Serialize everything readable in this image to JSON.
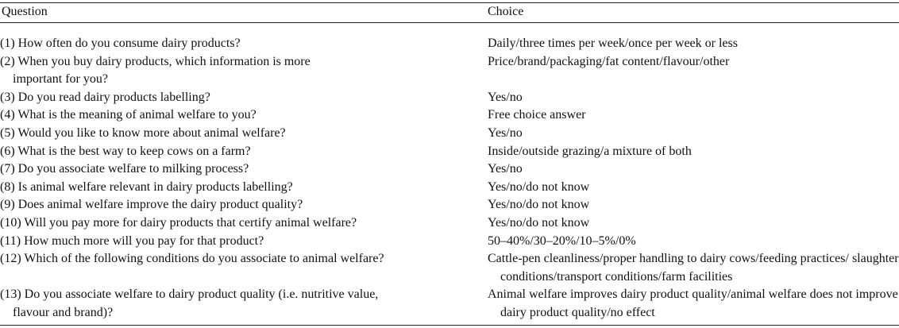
{
  "table": {
    "headers": {
      "question": "Question",
      "choice": "Choice"
    },
    "rows": [
      {
        "question": "(1) How often do you consume dairy products?",
        "choice": "Daily/three times per week/once per week or less"
      },
      {
        "question": "(2) When you buy dairy products, which information is more important for you?",
        "choice": "Price/brand/packaging/fat content/flavour/other"
      },
      {
        "question": "(3) Do you read dairy products labelling?",
        "choice": "Yes/no"
      },
      {
        "question": "(4) What is the meaning of animal welfare to you?",
        "choice": "Free choice answer"
      },
      {
        "question": "(5) Would you like to know more about animal welfare?",
        "choice": "Yes/no"
      },
      {
        "question": "(6) What is the best way to keep cows on a farm?",
        "choice": "Inside/outside grazing/a mixture of both"
      },
      {
        "question": "(7) Do you associate welfare to milking process?",
        "choice": "Yes/no"
      },
      {
        "question": "(8) Is animal welfare relevant in dairy products labelling?",
        "choice": "Yes/no/do not know"
      },
      {
        "question": "(9) Does animal welfare improve the dairy product quality?",
        "choice": "Yes/no/do not know"
      },
      {
        "question": "(10) Will you pay more for dairy products that certify animal welfare?",
        "choice": "Yes/no/do not know"
      },
      {
        "question": "(11) How much more will you pay for that product?",
        "choice": "50–40%/30–20%/10–5%/0%"
      },
      {
        "question": "(12) Which of the following conditions do you associate to animal welfare?",
        "choice": "Cattle-pen cleanliness/proper handling to dairy cows/feeding practices/ slaughter conditions/transport conditions/farm facilities"
      },
      {
        "question": "(13) Do you associate welfare to dairy product quality (i.e. nutritive value, flavour and brand)?",
        "choice": "Animal welfare improves dairy product quality/animal welfare does not improve dairy product quality/no effect"
      }
    ]
  }
}
